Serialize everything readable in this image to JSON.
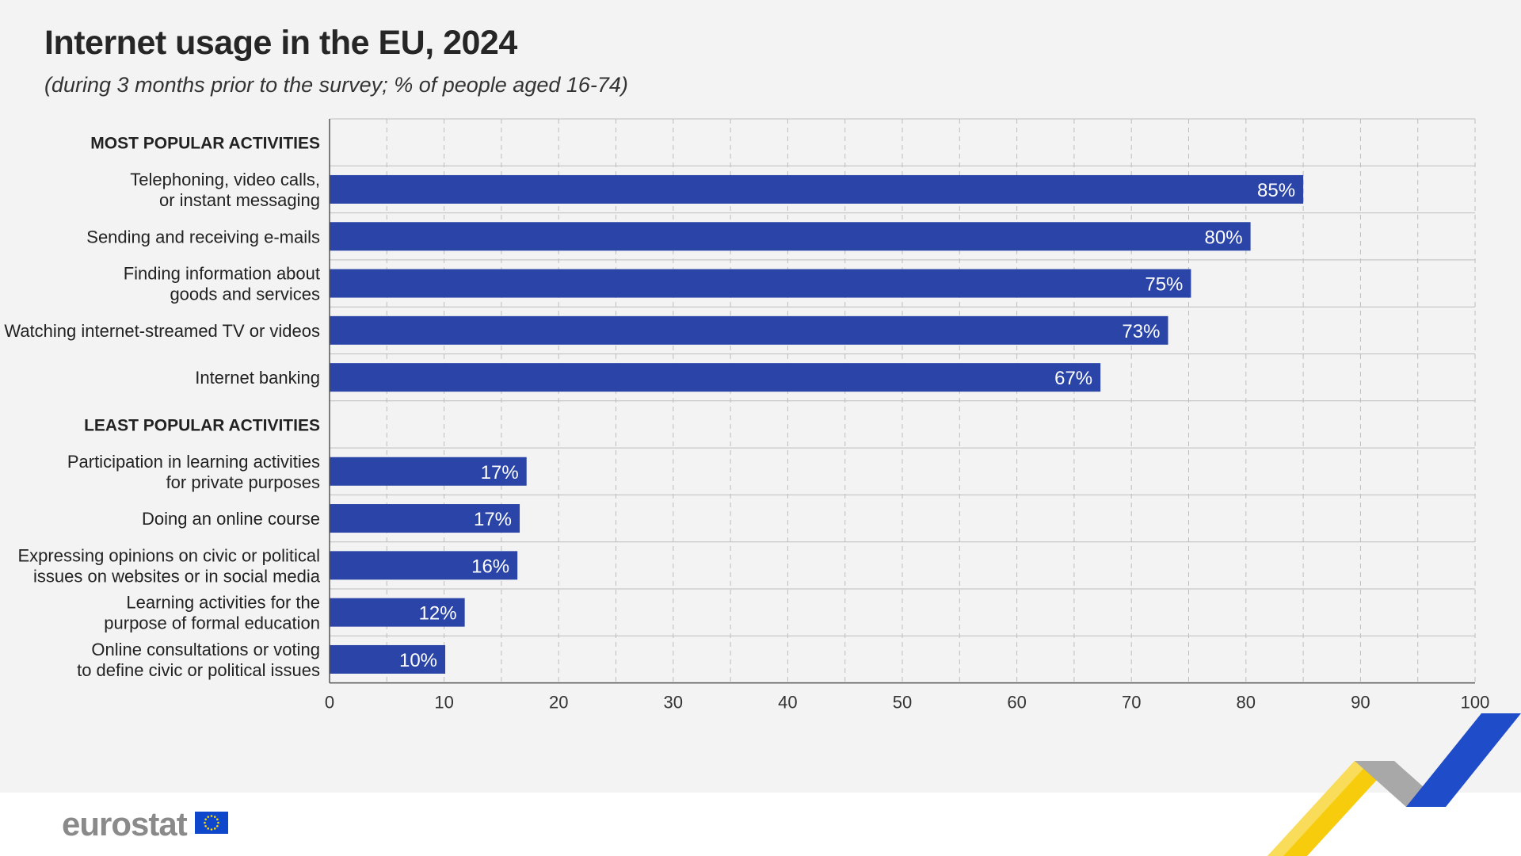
{
  "title": "Internet usage in the EU, 2024",
  "subtitle": "(during 3 months prior to the survey; % of people aged 16-74)",
  "logo": {
    "text": "eurostat",
    "flag_color": "#0e47cb",
    "star_color": "#ffdd00"
  },
  "colors": {
    "bar": "#2a44a7",
    "bar_label": "#ffffff",
    "grid": "#bdbdbd",
    "axis": "#555555"
  },
  "chart_data": {
    "type": "bar",
    "orientation": "horizontal",
    "rows": [
      {
        "kind": "header",
        "label": [
          "MOST POPULAR ACTIVITIES"
        ]
      },
      {
        "kind": "bar",
        "label": [
          "Telephoning, video calls,",
          "or instant messaging"
        ],
        "value": 85,
        "value_label": "85%"
      },
      {
        "kind": "bar",
        "label": [
          "Sending and receiving e-mails"
        ],
        "value": 80.4,
        "value_label": "80%"
      },
      {
        "kind": "bar",
        "label": [
          "Finding information about",
          "goods and services"
        ],
        "value": 75.2,
        "value_label": "75%"
      },
      {
        "kind": "bar",
        "label": [
          "Watching internet-streamed TV or videos"
        ],
        "value": 73.2,
        "value_label": "73%"
      },
      {
        "kind": "bar",
        "label": [
          "Internet banking"
        ],
        "value": 67.3,
        "value_label": "67%"
      },
      {
        "kind": "header",
        "label": [
          "LEAST POPULAR ACTIVITIES"
        ]
      },
      {
        "kind": "bar",
        "label": [
          "Participation in learning activities",
          "for private purposes"
        ],
        "value": 17.2,
        "value_label": "17%"
      },
      {
        "kind": "bar",
        "label": [
          "Doing an online course"
        ],
        "value": 16.6,
        "value_label": "17%"
      },
      {
        "kind": "bar",
        "label": [
          "Expressing opinions on civic or political",
          "issues on websites or in social media"
        ],
        "value": 16.4,
        "value_label": "16%"
      },
      {
        "kind": "bar",
        "label": [
          "Learning activities for the",
          "purpose of formal education"
        ],
        "value": 11.8,
        "value_label": "12%"
      },
      {
        "kind": "bar",
        "label": [
          "Online consultations or voting",
          "to define civic or political issues"
        ],
        "value": 10.1,
        "value_label": "10%"
      }
    ],
    "xlim": [
      0,
      100
    ],
    "xticks": [
      0,
      10,
      20,
      30,
      40,
      50,
      60,
      70,
      80,
      90,
      100
    ],
    "minor_gridlines": [
      5,
      15,
      25,
      35,
      45,
      55,
      65,
      75,
      85,
      95
    ],
    "grid": true,
    "xlabel": "",
    "ylabel": ""
  }
}
